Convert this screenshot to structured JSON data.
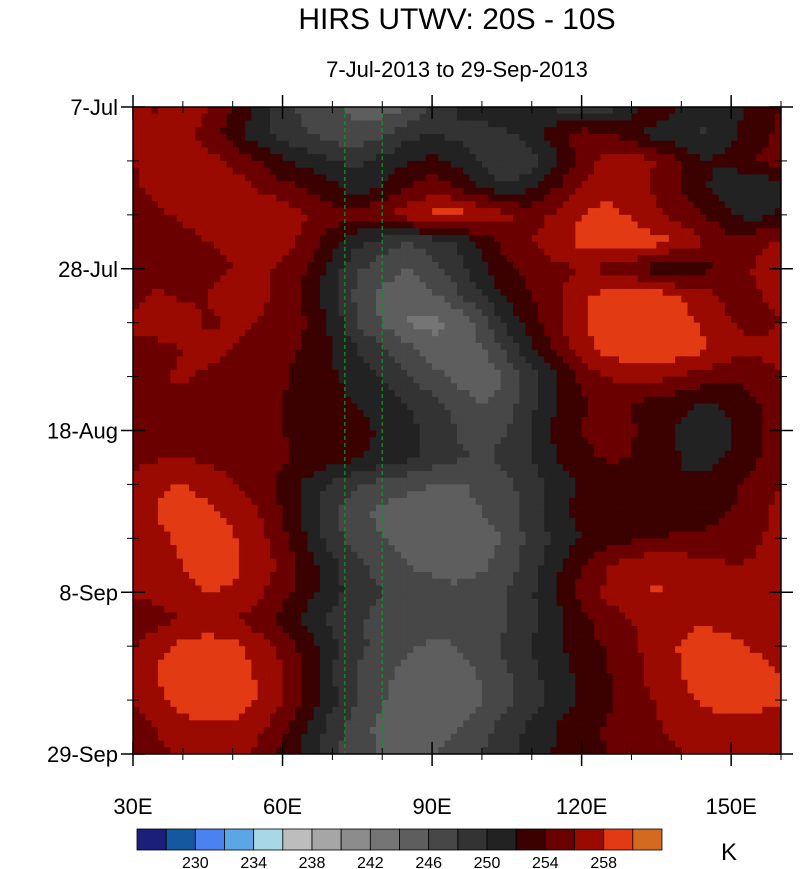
{
  "chart_data": {
    "type": "heatmap",
    "title": "HIRS UTWV: 20S - 10S",
    "subtitle": "7-Jul-2013 to 29-Sep-2013",
    "x_axis": {
      "min": 30,
      "max": 160,
      "ticks": [
        {
          "value": 30,
          "label": "30E"
        },
        {
          "value": 60,
          "label": "60E"
        },
        {
          "value": 90,
          "label": "90E"
        },
        {
          "value": 120,
          "label": "120E"
        },
        {
          "value": 150,
          "label": "150E"
        }
      ]
    },
    "y_axis": {
      "min": 0,
      "max": 84,
      "unit": "days since 7-Jul-2013",
      "reversed": true,
      "ticks": [
        {
          "value": 0,
          "label": "7-Jul"
        },
        {
          "value": 21,
          "label": "28-Jul"
        },
        {
          "value": 42,
          "label": "18-Aug"
        },
        {
          "value": 63,
          "label": "8-Sep"
        },
        {
          "value": 84,
          "label": "29-Sep"
        }
      ]
    },
    "reference_lines": [
      {
        "axis": "x",
        "value": 72.5,
        "color": "#1a8a2a",
        "style": "dashed"
      },
      {
        "axis": "x",
        "value": 80,
        "color": "#1a8a2a",
        "style": "dashed"
      }
    ],
    "colorbar": {
      "unit": "K",
      "levels": [
        228,
        230,
        232,
        234,
        236,
        238,
        240,
        242,
        244,
        246,
        248,
        250,
        252,
        254,
        256,
        258,
        260
      ],
      "labels": [
        {
          "value": 230,
          "label": "230"
        },
        {
          "value": 234,
          "label": "234"
        },
        {
          "value": 238,
          "label": "238"
        },
        {
          "value": 242,
          "label": "242"
        },
        {
          "value": 246,
          "label": "246"
        },
        {
          "value": 250,
          "label": "250"
        },
        {
          "value": 254,
          "label": "254"
        },
        {
          "value": 258,
          "label": "258"
        }
      ],
      "colors": [
        "#1b1f7a",
        "#14599f",
        "#4a82f0",
        "#5ba7e6",
        "#a8d8e8",
        "#bdbdbd",
        "#a6a6a6",
        "#8c8c8c",
        "#757575",
        "#5e5e5e",
        "#474747",
        "#333333",
        "#222222",
        "#3b0000",
        "#6b0000",
        "#9a0a00",
        "#e23a12",
        "#d46a1e"
      ]
    },
    "field": {
      "x_range": [
        30,
        160
      ],
      "y_range": [
        0,
        84
      ],
      "nx": 27,
      "ny": 25,
      "values": [
        [
          256.4,
          255.8,
          257.1,
          256.0,
          254.2,
          251.8,
          248.9,
          247.2,
          246.5,
          245.2,
          244.8,
          246.0,
          248.5,
          250.2,
          251.6,
          252.4,
          251.0,
          249.5,
          247.8,
          249.0,
          251.5,
          253.8,
          252.0,
          250.5,
          251.2,
          252.8,
          254.0
        ],
        [
          257.2,
          256.5,
          256.8,
          255.2,
          253.0,
          250.6,
          249.0,
          248.2,
          247.0,
          246.6,
          247.8,
          249.2,
          250.0,
          249.6,
          248.8,
          249.5,
          251.2,
          253.5,
          255.0,
          254.2,
          252.6,
          251.0,
          250.2,
          249.8,
          251.5,
          253.2,
          254.5
        ],
        [
          256.0,
          257.5,
          258.0,
          256.8,
          255.5,
          254.0,
          252.5,
          251.2,
          250.0,
          249.4,
          250.5,
          251.8,
          252.5,
          251.2,
          249.5,
          247.6,
          249.0,
          251.5,
          254.5,
          256.8,
          257.5,
          256.0,
          253.8,
          252.0,
          252.6,
          254.2,
          255.0
        ],
        [
          255.5,
          256.8,
          257.4,
          258.1,
          257.2,
          255.8,
          254.6,
          253.8,
          252.5,
          251.0,
          252.4,
          254.0,
          255.2,
          254.0,
          252.0,
          250.2,
          251.8,
          254.0,
          256.2,
          257.5,
          256.8,
          255.5,
          254.0,
          252.2,
          250.5,
          249.8,
          251.5
        ],
        [
          254.8,
          255.6,
          256.5,
          257.0,
          257.8,
          258.2,
          257.5,
          256.0,
          255.0,
          254.5,
          255.8,
          257.2,
          258.5,
          258.8,
          258.0,
          256.5,
          255.0,
          256.5,
          258.0,
          258.6,
          257.8,
          256.4,
          255.2,
          253.8,
          252.0,
          251.2,
          252.5
        ],
        [
          255.2,
          254.5,
          255.0,
          256.0,
          256.5,
          257.0,
          256.8,
          255.0,
          252.8,
          250.5,
          249.2,
          248.0,
          248.8,
          250.2,
          252.5,
          254.8,
          256.0,
          257.2,
          258.5,
          259.0,
          259.2,
          258.8,
          257.5,
          256.0,
          254.8,
          255.5,
          256.5
        ],
        [
          256.0,
          255.5,
          254.8,
          255.2,
          256.0,
          256.2,
          255.8,
          254.0,
          251.0,
          248.2,
          247.0,
          246.0,
          247.2,
          249.0,
          251.5,
          253.5,
          254.8,
          255.5,
          256.0,
          255.5,
          254.5,
          253.0,
          252.2,
          253.5,
          255.0,
          256.2,
          257.0
        ],
        [
          255.5,
          256.2,
          255.8,
          256.0,
          256.8,
          256.5,
          255.5,
          253.2,
          250.5,
          247.5,
          245.5,
          244.2,
          245.6,
          247.5,
          250.0,
          252.5,
          254.0,
          255.8,
          257.5,
          258.8,
          259.5,
          259.2,
          258.0,
          256.5,
          255.2,
          255.8,
          256.5
        ],
        [
          256.2,
          256.8,
          256.5,
          255.8,
          256.2,
          256.0,
          255.2,
          254.0,
          251.5,
          248.0,
          245.8,
          244.0,
          243.2,
          244.5,
          247.0,
          250.5,
          253.0,
          255.5,
          257.8,
          259.2,
          259.8,
          259.6,
          258.8,
          257.5,
          256.0,
          255.5,
          256.0
        ],
        [
          255.8,
          255.5,
          256.0,
          256.5,
          256.0,
          255.5,
          254.8,
          253.5,
          252.0,
          250.0,
          248.2,
          246.5,
          245.0,
          244.2,
          245.8,
          248.5,
          251.5,
          254.5,
          257.0,
          258.5,
          259.2,
          259.5,
          259.0,
          258.2,
          257.0,
          256.2,
          256.8
        ],
        [
          255.0,
          255.8,
          256.2,
          255.8,
          255.2,
          254.8,
          254.2,
          253.0,
          252.2,
          251.0,
          249.8,
          248.2,
          246.8,
          245.2,
          244.5,
          246.2,
          249.0,
          252.0,
          254.5,
          256.0,
          256.8,
          256.5,
          255.8,
          255.0,
          254.2,
          255.0,
          256.0
        ],
        [
          255.5,
          256.0,
          255.5,
          255.0,
          254.8,
          254.5,
          254.0,
          253.5,
          252.8,
          252.0,
          251.2,
          250.0,
          248.5,
          247.2,
          246.0,
          247.0,
          249.5,
          252.2,
          253.8,
          254.5,
          254.0,
          253.2,
          252.5,
          251.8,
          252.5,
          253.8,
          254.8
        ],
        [
          254.0,
          255.2,
          255.8,
          255.5,
          255.0,
          254.5,
          254.0,
          253.8,
          253.2,
          252.5,
          251.8,
          250.8,
          249.5,
          248.0,
          247.2,
          248.0,
          250.0,
          252.5,
          254.0,
          254.8,
          254.2,
          252.8,
          251.5,
          250.8,
          251.8,
          253.5,
          255.0
        ],
        [
          255.2,
          255.8,
          256.0,
          255.6,
          255.0,
          254.6,
          254.2,
          253.6,
          253.0,
          252.2,
          251.5,
          250.5,
          249.2,
          248.2,
          247.8,
          248.5,
          250.2,
          252.0,
          253.5,
          254.2,
          254.0,
          253.2,
          252.0,
          251.5,
          252.2,
          253.8,
          255.2
        ],
        [
          256.5,
          257.8,
          258.0,
          257.2,
          256.2,
          255.0,
          253.5,
          251.5,
          249.5,
          248.0,
          247.2,
          246.5,
          246.0,
          245.8,
          246.5,
          247.5,
          249.0,
          250.8,
          252.5,
          253.2,
          253.0,
          252.5,
          252.0,
          252.5,
          253.5,
          254.8,
          256.0
        ],
        [
          256.8,
          258.2,
          258.8,
          258.5,
          257.5,
          256.0,
          253.8,
          251.0,
          248.2,
          246.5,
          245.5,
          245.0,
          244.8,
          245.2,
          246.0,
          247.2,
          249.0,
          251.0,
          252.8,
          253.5,
          253.8,
          253.5,
          253.0,
          253.2,
          254.0,
          255.5,
          256.5
        ],
        [
          256.5,
          257.5,
          258.5,
          259.0,
          258.2,
          256.8,
          254.5,
          251.8,
          249.0,
          247.0,
          246.0,
          245.2,
          244.5,
          244.0,
          244.8,
          246.5,
          248.8,
          250.5,
          252.0,
          253.0,
          253.5,
          254.0,
          254.2,
          254.5,
          255.0,
          255.8,
          256.5
        ],
        [
          256.0,
          257.0,
          258.0,
          258.8,
          258.5,
          257.2,
          255.5,
          253.0,
          250.5,
          248.5,
          247.2,
          246.0,
          245.5,
          245.0,
          245.6,
          247.0,
          249.0,
          251.5,
          254.0,
          255.8,
          257.0,
          257.5,
          257.2,
          256.5,
          256.0,
          256.2,
          256.8
        ],
        [
          256.2,
          256.8,
          257.5,
          258.0,
          257.8,
          256.5,
          254.8,
          252.8,
          250.8,
          249.0,
          248.0,
          247.2,
          246.8,
          246.5,
          247.0,
          248.0,
          249.8,
          252.0,
          254.5,
          256.5,
          257.8,
          258.2,
          257.8,
          257.0,
          256.5,
          256.0,
          256.2
        ],
        [
          254.5,
          255.2,
          256.0,
          256.5,
          256.2,
          255.0,
          253.2,
          251.2,
          249.5,
          248.2,
          247.5,
          247.0,
          246.5,
          246.2,
          246.8,
          247.8,
          249.5,
          251.5,
          253.5,
          255.0,
          256.0,
          256.8,
          257.5,
          257.8,
          257.2,
          256.8,
          257.0
        ],
        [
          256.0,
          257.5,
          258.5,
          259.0,
          258.5,
          257.2,
          255.5,
          253.0,
          250.5,
          248.5,
          247.2,
          246.2,
          245.8,
          246.0,
          247.0,
          248.5,
          250.2,
          251.8,
          253.0,
          254.2,
          255.5,
          257.0,
          258.2,
          258.8,
          258.5,
          257.8,
          257.5
        ],
        [
          256.5,
          258.2,
          259.2,
          259.5,
          259.0,
          257.8,
          256.0,
          253.2,
          250.0,
          247.8,
          246.5,
          245.5,
          245.0,
          245.2,
          246.2,
          247.8,
          249.5,
          251.0,
          252.5,
          253.8,
          255.2,
          256.8,
          258.0,
          258.8,
          259.0,
          258.5,
          258.0
        ],
        [
          256.0,
          257.5,
          258.8,
          259.4,
          259.2,
          258.0,
          256.2,
          253.5,
          250.5,
          248.0,
          246.2,
          245.0,
          244.5,
          244.8,
          245.8,
          247.5,
          249.2,
          250.8,
          252.2,
          253.5,
          254.8,
          256.2,
          257.5,
          258.5,
          259.0,
          258.8,
          258.2
        ],
        [
          255.2,
          256.2,
          257.2,
          257.8,
          257.5,
          256.5,
          254.8,
          252.0,
          249.0,
          246.8,
          245.5,
          245.0,
          245.2,
          246.0,
          247.2,
          248.8,
          250.5,
          252.0,
          253.2,
          254.2,
          255.0,
          255.8,
          256.5,
          257.0,
          257.2,
          257.0,
          256.8
        ],
        [
          254.5,
          255.5,
          256.5,
          257.0,
          256.8,
          255.5,
          253.5,
          251.0,
          248.5,
          246.5,
          245.8,
          245.5,
          245.8,
          246.8,
          248.0,
          249.5,
          251.0,
          252.2,
          253.2,
          254.0,
          254.8,
          255.5,
          256.0,
          256.5,
          256.8,
          256.5,
          256.2
        ]
      ]
    }
  }
}
